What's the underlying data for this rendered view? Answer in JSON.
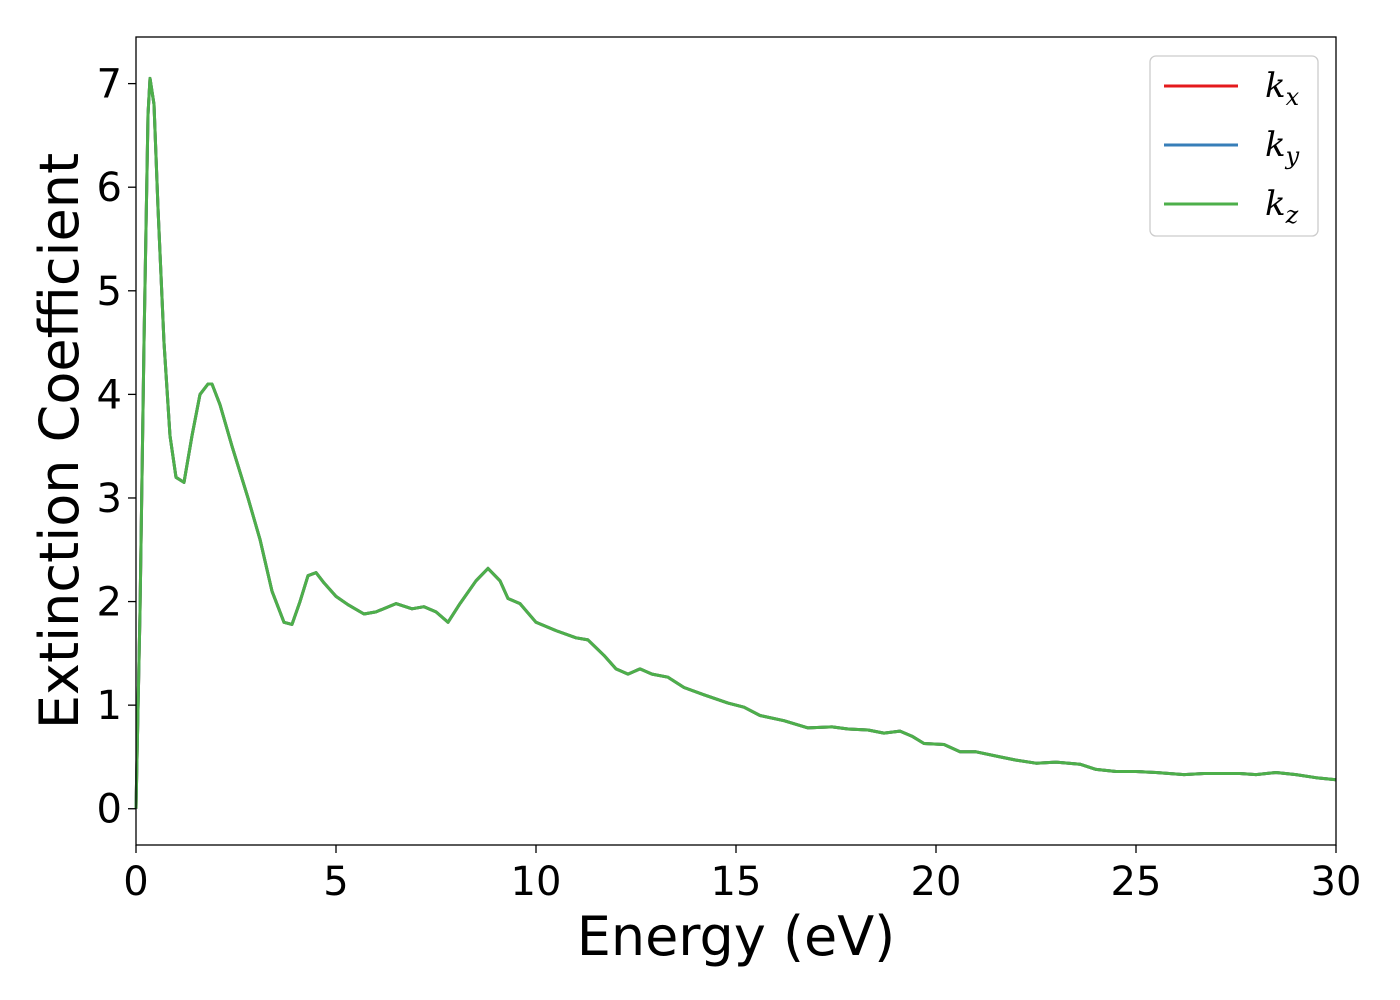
{
  "chart_data": {
    "type": "line",
    "xlabel": "Energy (eV)",
    "ylabel": "Extinction Coefficient",
    "xlim": [
      0,
      30
    ],
    "ylim": [
      -0.35,
      7.45
    ],
    "xticks": [
      0,
      5,
      10,
      15,
      20,
      25,
      30
    ],
    "xtick_labels": [
      "0",
      "5",
      "10",
      "15",
      "20",
      "25",
      "30"
    ],
    "yticks": [
      0,
      1,
      2,
      3,
      4,
      5,
      6,
      7
    ],
    "ytick_labels": [
      "0",
      "1",
      "2",
      "3",
      "4",
      "5",
      "6",
      "7"
    ],
    "grid": false,
    "legend_position": "top-right",
    "x": [
      0,
      0.1,
      0.2,
      0.3,
      0.35,
      0.45,
      0.55,
      0.7,
      0.85,
      1.0,
      1.2,
      1.4,
      1.6,
      1.8,
      1.9,
      2.1,
      2.4,
      2.8,
      3.1,
      3.4,
      3.7,
      3.9,
      4.1,
      4.3,
      4.5,
      4.7,
      5.0,
      5.3,
      5.7,
      6.0,
      6.5,
      6.9,
      7.2,
      7.5,
      7.8,
      8.1,
      8.5,
      8.8,
      9.1,
      9.3,
      9.6,
      10.0,
      10.5,
      11.0,
      11.3,
      11.7,
      12.0,
      12.3,
      12.6,
      12.9,
      13.3,
      13.7,
      14.2,
      14.8,
      15.2,
      15.6,
      16.2,
      16.8,
      17.4,
      17.8,
      18.3,
      18.7,
      19.1,
      19.4,
      19.7,
      20.2,
      20.6,
      21.0,
      21.6,
      22.0,
      22.5,
      23.0,
      23.6,
      24.0,
      24.5,
      25.0,
      25.5,
      26.2,
      26.7,
      27.2,
      27.6,
      28.0,
      28.5,
      29.0,
      29.5,
      30.0
    ],
    "series": [
      {
        "name": "k_x",
        "legend_main": "k",
        "legend_sub": "x",
        "color": "#e41a1c",
        "values": [
          0.0,
          1.9,
          4.5,
          6.7,
          7.05,
          6.8,
          5.8,
          4.5,
          3.6,
          3.2,
          3.15,
          3.6,
          4.0,
          4.1,
          4.1,
          3.9,
          3.5,
          3.0,
          2.6,
          2.1,
          1.8,
          1.78,
          2.0,
          2.25,
          2.28,
          2.18,
          2.05,
          1.97,
          1.88,
          1.9,
          1.98,
          1.93,
          1.95,
          1.9,
          1.8,
          1.98,
          2.2,
          2.32,
          2.2,
          2.03,
          1.98,
          1.8,
          1.72,
          1.65,
          1.63,
          1.48,
          1.35,
          1.3,
          1.35,
          1.3,
          1.27,
          1.17,
          1.1,
          1.02,
          0.98,
          0.9,
          0.85,
          0.78,
          0.79,
          0.77,
          0.76,
          0.73,
          0.75,
          0.7,
          0.63,
          0.62,
          0.55,
          0.55,
          0.5,
          0.47,
          0.44,
          0.45,
          0.43,
          0.38,
          0.36,
          0.36,
          0.35,
          0.33,
          0.34,
          0.34,
          0.34,
          0.33,
          0.35,
          0.33,
          0.3,
          0.28
        ]
      },
      {
        "name": "k_y",
        "legend_main": "k",
        "legend_sub": "y",
        "color": "#377eb8",
        "values": [
          0.0,
          1.9,
          4.5,
          6.7,
          7.05,
          6.8,
          5.8,
          4.5,
          3.6,
          3.2,
          3.15,
          3.6,
          4.0,
          4.1,
          4.1,
          3.9,
          3.5,
          3.0,
          2.6,
          2.1,
          1.8,
          1.78,
          2.0,
          2.25,
          2.28,
          2.18,
          2.05,
          1.97,
          1.88,
          1.9,
          1.98,
          1.93,
          1.95,
          1.9,
          1.8,
          1.98,
          2.2,
          2.32,
          2.2,
          2.03,
          1.98,
          1.8,
          1.72,
          1.65,
          1.63,
          1.48,
          1.35,
          1.3,
          1.35,
          1.3,
          1.27,
          1.17,
          1.1,
          1.02,
          0.98,
          0.9,
          0.85,
          0.78,
          0.79,
          0.77,
          0.76,
          0.73,
          0.75,
          0.7,
          0.63,
          0.62,
          0.55,
          0.55,
          0.5,
          0.47,
          0.44,
          0.45,
          0.43,
          0.38,
          0.36,
          0.36,
          0.35,
          0.33,
          0.34,
          0.34,
          0.34,
          0.33,
          0.35,
          0.33,
          0.3,
          0.28
        ]
      },
      {
        "name": "k_z",
        "legend_main": "k",
        "legend_sub": "z",
        "color": "#4daf4a",
        "values": [
          0.0,
          1.9,
          4.5,
          6.7,
          7.05,
          6.8,
          5.8,
          4.5,
          3.6,
          3.2,
          3.15,
          3.6,
          4.0,
          4.1,
          4.1,
          3.9,
          3.5,
          3.0,
          2.6,
          2.1,
          1.8,
          1.78,
          2.0,
          2.25,
          2.28,
          2.18,
          2.05,
          1.97,
          1.88,
          1.9,
          1.98,
          1.93,
          1.95,
          1.9,
          1.8,
          1.98,
          2.2,
          2.32,
          2.2,
          2.03,
          1.98,
          1.8,
          1.72,
          1.65,
          1.63,
          1.48,
          1.35,
          1.3,
          1.35,
          1.3,
          1.27,
          1.17,
          1.1,
          1.02,
          0.98,
          0.9,
          0.85,
          0.78,
          0.79,
          0.77,
          0.76,
          0.73,
          0.75,
          0.7,
          0.63,
          0.62,
          0.55,
          0.55,
          0.5,
          0.47,
          0.44,
          0.45,
          0.43,
          0.38,
          0.36,
          0.36,
          0.35,
          0.33,
          0.34,
          0.34,
          0.34,
          0.33,
          0.35,
          0.33,
          0.3,
          0.28
        ]
      }
    ]
  }
}
